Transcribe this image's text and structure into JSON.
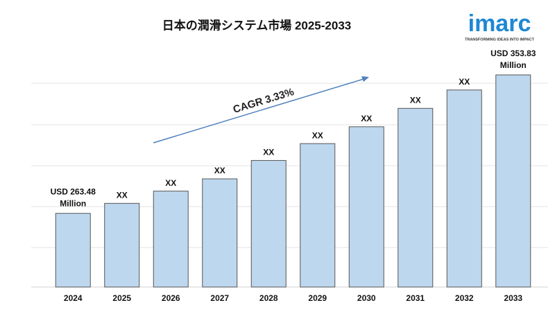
{
  "chart_data": {
    "type": "bar",
    "title": "日本の潤滑システム市場 2025-2033",
    "categories": [
      "2024",
      "2025",
      "2026",
      "2027",
      "2028",
      "2029",
      "2030",
      "2031",
      "2032",
      "2033"
    ],
    "values": [
      263.48,
      270,
      278,
      286,
      298,
      309,
      320,
      332,
      344,
      353.83
    ],
    "value_labels": [
      "USD 263.48 Million",
      "XX",
      "XX",
      "XX",
      "XX",
      "XX",
      "XX",
      "XX",
      "XX",
      "USD 353.83 Million"
    ],
    "color": "#bdd7ee",
    "ylim": [
      215.4,
      355.2
    ],
    "grid": true,
    "annotation": "CAGR 3.33%"
  },
  "logo": {
    "name": "imarc",
    "tagline": "TRANSFORMING IDEAS INTO IMPACT"
  }
}
